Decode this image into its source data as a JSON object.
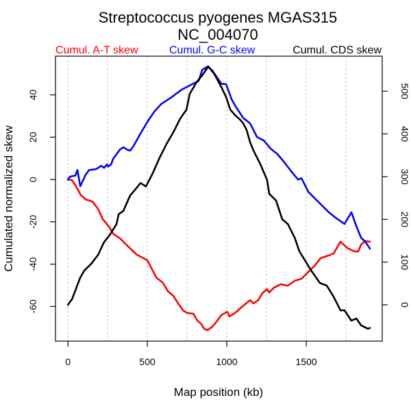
{
  "chart_data": {
    "type": "line",
    "title": "Streptococcus pyogenes MGAS315",
    "subtitle": "NC_004070",
    "xlabel": "Map position (kb)",
    "ylabel": "Cumulated normalized skew",
    "ylabel_right": "",
    "xlim": [
      -78,
      1978
    ],
    "ylim": [
      -76.4,
      58.3
    ],
    "ylim_right": [
      -85,
      582
    ],
    "x_ticks": [
      0,
      500,
      1000,
      1500
    ],
    "x_tick_labels": [
      "0",
      "500",
      "1000",
      "1500"
    ],
    "y_ticks": [
      -60,
      -40,
      -20,
      0,
      20,
      40
    ],
    "y_tick_labels": [
      "-60",
      "-40",
      "-20",
      "0",
      "20",
      "40"
    ],
    "y_ticks_right": [
      0,
      100,
      200,
      300,
      400,
      500
    ],
    "y_tick_labels_right": [
      "0",
      "100",
      "200",
      "300",
      "400",
      "500"
    ],
    "grid": "vertical dashed every 250 kb",
    "legend_placement": "top (above plot)",
    "series": [
      {
        "name": "Cumul. A-T skew",
        "color": "#ff0000",
        "axis": "left",
        "x": [
          0,
          26,
          47,
          82,
          112,
          155,
          190,
          220,
          263,
          284,
          328,
          371,
          435,
          500,
          556,
          599,
          629,
          664,
          694,
          724,
          750,
          789,
          815,
          836,
          858,
          879,
          909,
          940,
          965,
          1004,
          1017,
          1052,
          1095,
          1147,
          1168,
          1198,
          1224,
          1254,
          1267,
          1297,
          1340,
          1384,
          1427,
          1470,
          1513,
          1556,
          1590,
          1642,
          1672,
          1715,
          1759,
          1802,
          1827,
          1845,
          1871,
          1901
        ],
        "y": [
          0,
          -0.3,
          -2.6,
          -7.4,
          -9.4,
          -10.4,
          -13.9,
          -18.8,
          -22.7,
          -25.6,
          -27.8,
          -31.1,
          -35.6,
          -38.2,
          -46.3,
          -48.9,
          -52.8,
          -55.0,
          -58.6,
          -61.8,
          -63.1,
          -63.4,
          -66.7,
          -68.0,
          -70.6,
          -71.2,
          -69.6,
          -66.7,
          -64.1,
          -62.5,
          -64.7,
          -63.1,
          -60.2,
          -57.0,
          -58.6,
          -57.0,
          -53.7,
          -51.8,
          -53.4,
          -51.1,
          -49.5,
          -50.2,
          -47.9,
          -46.9,
          -43.7,
          -40.5,
          -37.2,
          -35.9,
          -35.0,
          -29.4,
          -32.4,
          -34.0,
          -34.0,
          -30.7,
          -29.1,
          -29.4
        ]
      },
      {
        "name": "Cumul. G-C skew",
        "color": "#0000ff",
        "axis": "left",
        "x": [
          0,
          13,
          47,
          60,
          78,
          112,
          134,
          177,
          211,
          228,
          246,
          254,
          272,
          284,
          328,
          349,
          371,
          392,
          414,
          457,
          500,
          543,
          586,
          651,
          715,
          780,
          823,
          845,
          879,
          909,
          965,
          996,
          1030,
          1060,
          1103,
          1147,
          1190,
          1233,
          1276,
          1319,
          1362,
          1405,
          1448,
          1470,
          1513,
          1556,
          1599,
          1642,
          1685,
          1741,
          1784,
          1815,
          1845,
          1871,
          1901
        ],
        "y": [
          0,
          1.3,
          1.9,
          4.5,
          -3.2,
          2.3,
          4.5,
          4.9,
          6.5,
          5.5,
          7.1,
          6.1,
          7.1,
          9.7,
          14.2,
          15.2,
          14.2,
          13.6,
          15.9,
          21.7,
          27.2,
          32.0,
          35.6,
          38.8,
          42.4,
          45.0,
          46.6,
          51.8,
          53.4,
          51.5,
          45.3,
          45.0,
          37.9,
          34.0,
          29.1,
          26.5,
          20.1,
          18.4,
          14.6,
          12.0,
          8.1,
          3.9,
          0,
          0.6,
          -5.8,
          -9.1,
          -12.3,
          -15.5,
          -18.1,
          -21.0,
          -15.5,
          -22.0,
          -27.5,
          -29.4,
          -32.7
        ]
      },
      {
        "name": "Cumul. CDS skew",
        "color": "#000000",
        "axis": "right",
        "x": [
          0,
          26,
          78,
          103,
          147,
          190,
          228,
          263,
          306,
          319,
          349,
          392,
          422,
          457,
          491,
          534,
          578,
          621,
          664,
          707,
          746,
          767,
          810,
          845,
          884,
          922,
          965,
          996,
          1022,
          1052,
          1082,
          1103,
          1125,
          1147,
          1168,
          1211,
          1254,
          1267,
          1310,
          1349,
          1384,
          1427,
          1457,
          1500,
          1526,
          1586,
          1629,
          1672,
          1715,
          1741,
          1784,
          1815,
          1845,
          1888,
          1901
        ],
        "y": [
          0,
          13,
          64,
          80,
          96,
          117,
          147,
          163,
          189,
          212,
          220,
          256,
          269,
          285,
          277,
          308,
          345,
          377,
          404,
          436,
          457,
          494,
          521,
          537,
          558,
          540,
          510,
          486,
          457,
          444,
          434,
          425,
          409,
          380,
          361,
          329,
          292,
          260,
          244,
          200,
          189,
          157,
          125,
          99,
          83,
          51,
          45,
          19,
          -13,
          -13,
          -37,
          -32,
          -48,
          -56,
          -54
        ]
      }
    ]
  }
}
